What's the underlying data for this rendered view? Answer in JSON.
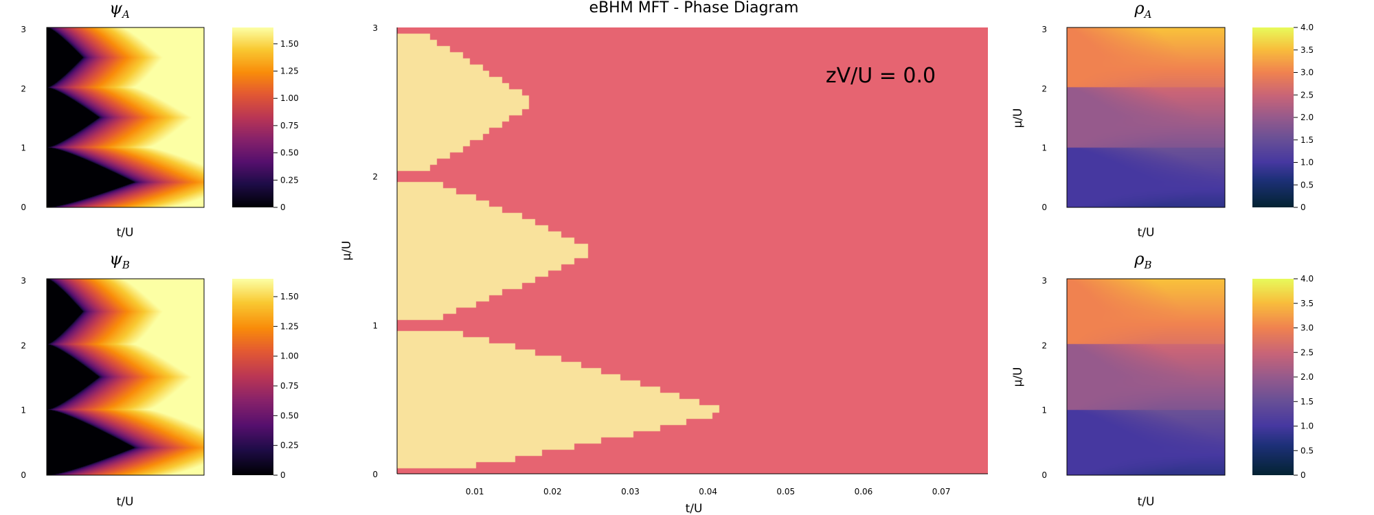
{
  "chart_data": [
    {
      "panel": "psi_A",
      "type": "heatmap",
      "title_symbol": "ψ",
      "title_sub": "A",
      "xlabel": "t/U",
      "ylabel": "",
      "xlim": [
        0.0,
        0.076
      ],
      "ylim": [
        0,
        3
      ],
      "yticks": [
        "0",
        "1",
        "2",
        "3"
      ],
      "colorbar": {
        "range": [
          0,
          1.65
        ],
        "ticks": [
          "0",
          "0.25",
          "0.50",
          "0.75",
          "1.00",
          "1.25",
          "1.50"
        ],
        "colormap": "inferno"
      }
    },
    {
      "panel": "psi_B",
      "type": "heatmap",
      "title_symbol": "ψ",
      "title_sub": "B",
      "xlabel": "t/U",
      "ylabel": "",
      "xlim": [
        0.0,
        0.076
      ],
      "ylim": [
        0,
        3
      ],
      "yticks": [
        "0",
        "1",
        "2",
        "3"
      ],
      "colorbar": {
        "range": [
          0,
          1.65
        ],
        "ticks": [
          "0",
          "0.25",
          "0.50",
          "0.75",
          "1.00",
          "1.25",
          "1.50"
        ],
        "colormap": "inferno"
      }
    },
    {
      "panel": "phase",
      "type": "heatmap",
      "title": "eBHM MFT - Phase Diagram",
      "annotation": "zV/U = 0.0",
      "xlabel": "t/U",
      "ylabel": "μ/U",
      "xlim": [
        0.0,
        0.076
      ],
      "ylim": [
        0,
        3
      ],
      "xticks": [
        "0.01",
        "0.02",
        "0.03",
        "0.04",
        "0.05",
        "0.06",
        "0.07"
      ],
      "yticks": [
        "0",
        "1",
        "2",
        "3"
      ],
      "colors": {
        "superfluid": "#e66471",
        "mott_insulator": "#f9e29c"
      },
      "mott_lobe_tips_tU": [
        0.0425,
        0.0255,
        0.0176
      ],
      "mott_lobe_centers_muU": [
        0.42,
        1.5,
        2.5
      ]
    },
    {
      "panel": "rho_A",
      "type": "heatmap",
      "title_symbol": "ρ",
      "title_sub": "A",
      "xlabel": "t/U",
      "ylabel": "μ/U",
      "xlim": [
        0.0,
        0.076
      ],
      "ylim": [
        0,
        3
      ],
      "yticks": [
        "0",
        "1",
        "2",
        "3"
      ],
      "colorbar": {
        "range": [
          0,
          4.0
        ],
        "ticks": [
          "0",
          "0.5",
          "1.0",
          "1.5",
          "2.0",
          "2.5",
          "3.0",
          "3.5",
          "4.0"
        ],
        "colormap": "thermal"
      }
    },
    {
      "panel": "rho_B",
      "type": "heatmap",
      "title_symbol": "ρ",
      "title_sub": "B",
      "xlabel": "t/U",
      "ylabel": "μ/U",
      "xlim": [
        0.0,
        0.076
      ],
      "ylim": [
        0,
        3
      ],
      "yticks": [
        "0",
        "1",
        "2",
        "3"
      ],
      "colorbar": {
        "range": [
          0,
          4.0
        ],
        "ticks": [
          "0",
          "0.5",
          "1.0",
          "1.5",
          "2.0",
          "2.5",
          "3.0",
          "3.5",
          "4.0"
        ],
        "colormap": "thermal"
      }
    }
  ]
}
